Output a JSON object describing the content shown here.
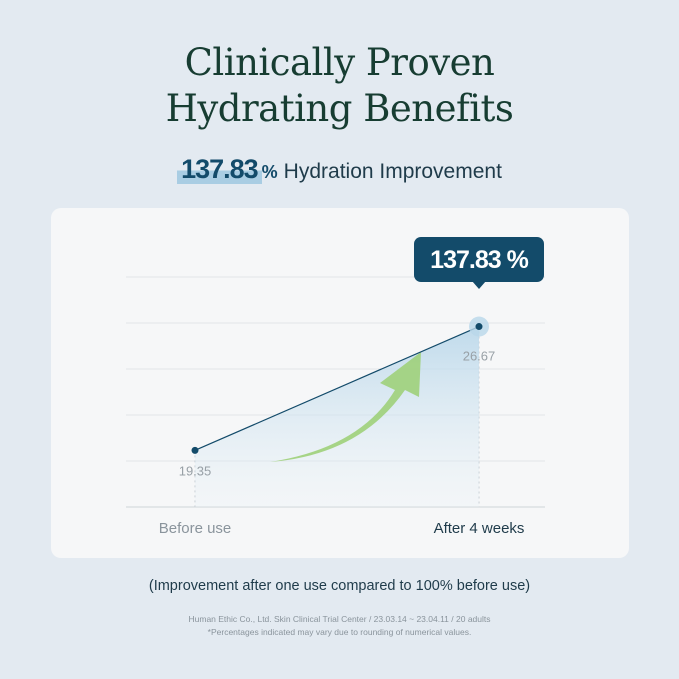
{
  "title_line1": "Clinically Proven",
  "title_line2": "Hydrating Benefits",
  "headline": {
    "value": "137.83",
    "unit": "%",
    "label": "Hydration Improvement"
  },
  "chart_data": {
    "type": "line",
    "categories": [
      "Before use",
      "After 4 weeks"
    ],
    "values": [
      19.35,
      26.67
    ],
    "value_labels": [
      "19.35",
      "26.67"
    ],
    "callout": "137.83 %",
    "ylim": [
      16,
      29.6
    ],
    "grid": true,
    "colors": {
      "line": "#134b6a",
      "arrow": "#9fd07a",
      "fill": "#c9e0ee"
    }
  },
  "note": "(Improvement after one use compared to 100% before use)",
  "source": "Human Ethic Co., Ltd. Skin Clinical Trial Center / 23.03.14 ~ 23.04.11 / 20 adults",
  "disclaimer": "*Percentages indicated may vary due to rounding of numerical values."
}
